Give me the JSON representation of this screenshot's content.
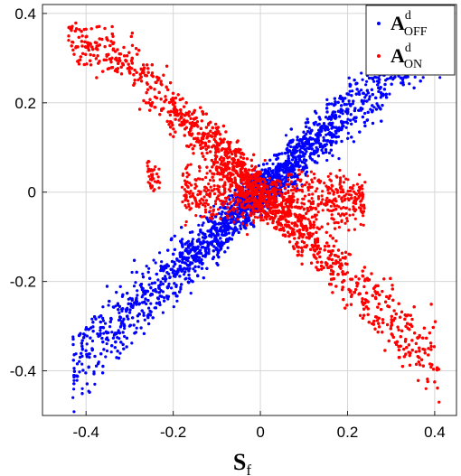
{
  "chart_data": {
    "type": "scatter",
    "title": "",
    "xlabel_main": "S",
    "xlabel_sub": "f",
    "ylabel": "",
    "xlim": [
      -0.5,
      0.45
    ],
    "ylim": [
      -0.5,
      0.42
    ],
    "xticks": [
      -0.4,
      -0.2,
      0,
      0.2,
      0.4
    ],
    "xtick_labels": [
      "-0.4",
      "-0.2",
      "0",
      "0.2",
      "0.4"
    ],
    "yticks": [
      -0.4,
      -0.2,
      0,
      0.2,
      0.4
    ],
    "ytick_labels": [
      "-0.4",
      "-0.2",
      "0",
      "0.2",
      "0.4"
    ],
    "grid": true,
    "legend_position": "top-right",
    "series": [
      {
        "name_main": "A",
        "name_sup": "d",
        "name_sub": "OFF",
        "color": "#0000ff",
        "trend_slope": 0.9,
        "x_range": [
          -0.43,
          0.42
        ],
        "description_points": [
          [
            -0.43,
            -0.46
          ],
          [
            -0.38,
            -0.43
          ],
          [
            -0.3,
            -0.3
          ],
          [
            -0.2,
            -0.18
          ],
          [
            -0.1,
            -0.08
          ],
          [
            0,
            0
          ],
          [
            0.1,
            0.08
          ],
          [
            0.2,
            0.18
          ],
          [
            0.3,
            0.28
          ],
          [
            0.38,
            0.33
          ],
          [
            0.42,
            0.32
          ]
        ]
      },
      {
        "name_main": "A",
        "name_sup": "d",
        "name_sub": "ON",
        "color": "#ff0000",
        "trend_slope": -0.95,
        "x_range": [
          -0.44,
          0.41
        ],
        "description_points": [
          [
            -0.44,
            0.34
          ],
          [
            -0.35,
            0.34
          ],
          [
            -0.3,
            0.28
          ],
          [
            -0.2,
            0.18
          ],
          [
            -0.1,
            0.08
          ],
          [
            0,
            0
          ],
          [
            0.1,
            -0.08
          ],
          [
            0.2,
            -0.18
          ],
          [
            0.3,
            -0.3
          ],
          [
            0.38,
            -0.44
          ],
          [
            0.41,
            -0.47
          ]
        ]
      }
    ]
  }
}
